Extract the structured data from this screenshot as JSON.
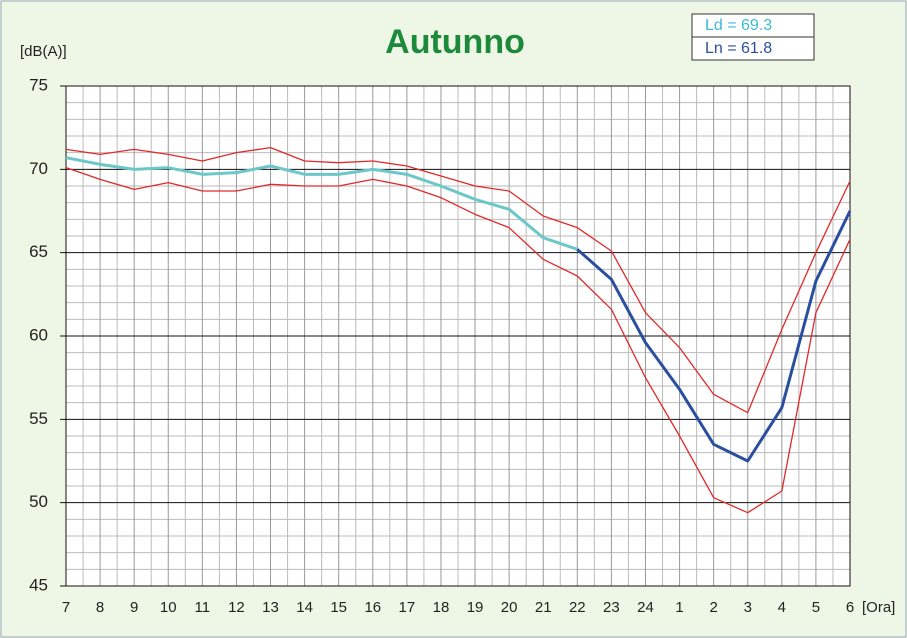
{
  "chart_data": {
    "type": "line",
    "title": "Autunno",
    "y_label": "[dB(A)]",
    "x_label": "[Ora]",
    "annotations": [
      "Ld = 69.3",
      "Ln = 61.8"
    ],
    "categories": [
      "7",
      "8",
      "9",
      "10",
      "11",
      "12",
      "13",
      "14",
      "15",
      "16",
      "17",
      "18",
      "19",
      "20",
      "21",
      "22",
      "23",
      "24",
      "1",
      "2",
      "3",
      "4",
      "5",
      "6"
    ],
    "series": [
      {
        "color": "#e02a2a",
        "values": [
          71.2,
          70.9,
          71.2,
          70.9,
          70.5,
          71.0,
          71.3,
          70.5,
          70.4,
          70.5,
          70.2,
          69.6,
          69.0,
          68.7,
          67.2,
          66.5,
          65.1,
          61.4,
          59.3,
          56.5,
          55.4,
          60.4,
          65.0,
          69.3
        ]
      },
      {
        "color": "#e02a2a",
        "values": [
          70.1,
          69.4,
          68.8,
          69.2,
          68.7,
          68.7,
          69.1,
          69.0,
          69.0,
          69.4,
          69.0,
          68.3,
          67.3,
          66.5,
          64.6,
          63.6,
          61.6,
          57.5,
          54.0,
          50.3,
          49.4,
          50.7,
          61.4,
          65.8
        ]
      },
      {
        "color": "#6cc8c8",
        "values": [
          70.7,
          70.3,
          70.0,
          70.1,
          69.7,
          69.8,
          70.2,
          69.7,
          69.7,
          70.0,
          69.7,
          69.0,
          68.2,
          67.6,
          65.9,
          65.2,
          null,
          null,
          null,
          null,
          null,
          null,
          null,
          null
        ]
      },
      {
        "color": "#2a4fa0",
        "values": [
          null,
          null,
          null,
          null,
          null,
          null,
          null,
          null,
          null,
          null,
          null,
          null,
          null,
          null,
          null,
          65.2,
          63.4,
          59.6,
          56.8,
          53.5,
          52.5,
          55.7,
          63.3,
          67.5
        ]
      }
    ],
    "ylim": [
      45,
      75
    ],
    "yticks": [
      45,
      50,
      55,
      60,
      65,
      70,
      75
    ],
    "yminorticks": [
      46,
      47,
      48,
      49,
      51,
      52,
      53,
      54,
      56,
      57,
      58,
      59,
      61,
      62,
      63,
      64,
      66,
      67,
      68,
      69,
      71,
      72,
      73,
      74
    ],
    "grid": true,
    "annotation_colors": [
      "#3bbad6",
      "#2a4fa0"
    ]
  }
}
